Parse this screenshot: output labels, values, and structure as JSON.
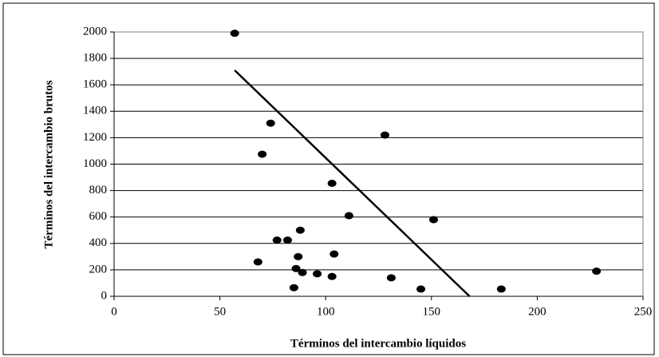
{
  "chart_data": {
    "type": "scatter",
    "xlabel": "Términos del intercambio líquidos",
    "ylabel": "Términos del intercambio brutos",
    "x": [
      57,
      74,
      70,
      128,
      103,
      111,
      151,
      88,
      77,
      82,
      87,
      104,
      68,
      86,
      89,
      96,
      103,
      131,
      85,
      145,
      183,
      228
    ],
    "values": [
      1990,
      1310,
      1075,
      1220,
      855,
      610,
      580,
      500,
      425,
      425,
      300,
      320,
      260,
      210,
      180,
      170,
      150,
      140,
      65,
      55,
      55,
      190
    ],
    "color": "#000000",
    "trendline": {
      "x": [
        57,
        168
      ],
      "y": [
        1710,
        0
      ],
      "color": "#000000"
    },
    "xlim": [
      0,
      250
    ],
    "xticks": [
      0,
      50,
      100,
      150,
      200,
      250
    ],
    "ylim": [
      0,
      2000
    ],
    "yticks": [
      0,
      200,
      400,
      600,
      800,
      1000,
      1200,
      1400,
      1600,
      1800,
      2000
    ],
    "grid": true
  }
}
